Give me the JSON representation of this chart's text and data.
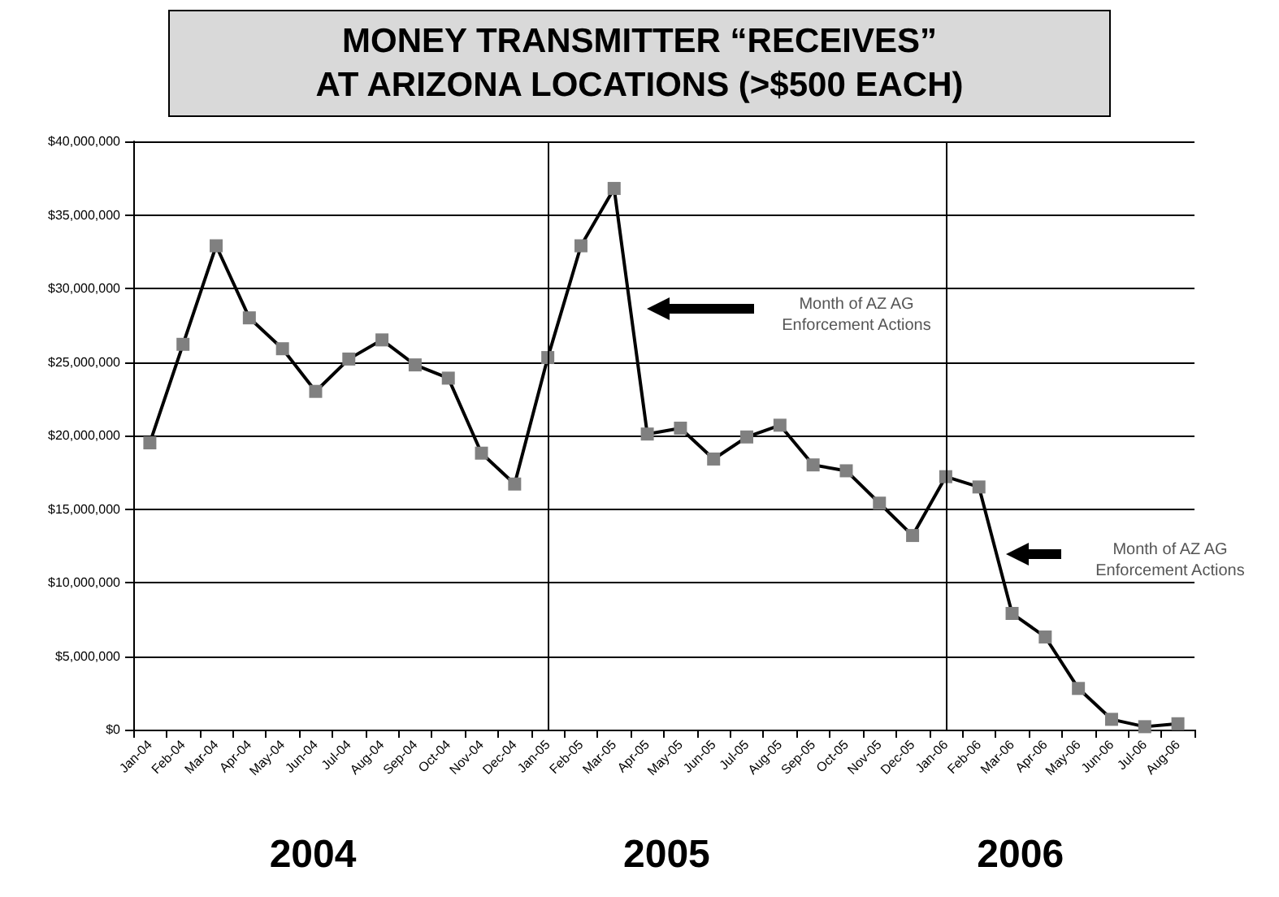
{
  "chart_data": {
    "type": "line",
    "title": "MONEY TRANSMITTER “RECEIVES”\nAT ARIZONA LOCATIONS (>$500 EACH)",
    "categories": [
      "Jan-04",
      "Feb-04",
      "Mar-04",
      "Apr-04",
      "May-04",
      "Jun-04",
      "Jul-04",
      "Aug-04",
      "Sep-04",
      "Oct-04",
      "Nov-04",
      "Dec-04",
      "Jan-05",
      "Feb-05",
      "Mar-05",
      "Apr-05",
      "May-05",
      "Jun-05",
      "Jul-05",
      "Aug-05",
      "Sep-05",
      "Oct-05",
      "Nov-05",
      "Dec-05",
      "Jan-06",
      "Feb-06",
      "Mar-06",
      "Apr-06",
      "May-06",
      "Jun-06",
      "Jul-06",
      "Aug-06"
    ],
    "series": [
      {
        "color": "#000000",
        "values": [
          19500000,
          26200000,
          32900000,
          28000000,
          25900000,
          23000000,
          25200000,
          26500000,
          24800000,
          23900000,
          18800000,
          16700000,
          25300000,
          32900000,
          36800000,
          20100000,
          20500000,
          18400000,
          19900000,
          20700000,
          18000000,
          17600000,
          15400000,
          13200000,
          17200000,
          16500000,
          7900000,
          6300000,
          2800000,
          700000,
          200000,
          400000
        ]
      }
    ],
    "ylim": [
      0,
      40000000
    ],
    "yticks": [
      {
        "value": 0,
        "label": "$0"
      },
      {
        "value": 5000000,
        "label": "$5,000,000"
      },
      {
        "value": 10000000,
        "label": "$10,000,000"
      },
      {
        "value": 15000000,
        "label": "$15,000,000"
      },
      {
        "value": 20000000,
        "label": "$20,000,000"
      },
      {
        "value": 25000000,
        "label": "$25,000,000"
      },
      {
        "value": 30000000,
        "label": "$30,000,000"
      },
      {
        "value": 35000000,
        "label": "$35,000,000"
      },
      {
        "value": 40000000,
        "label": "$40,000,000"
      }
    ],
    "grid": "y",
    "marker": "square",
    "line_style": "solid",
    "ref_lines": [
      {
        "axis": "x",
        "value": "Jan-05",
        "color": "#000000"
      },
      {
        "axis": "x",
        "value": "Jan-06",
        "color": "#000000"
      }
    ],
    "annotations": [
      "Month of AZ AG\nEnforcement Actions",
      "Month of AZ AG\nEnforcement Actions",
      "2004",
      "2005",
      "2006"
    ]
  }
}
